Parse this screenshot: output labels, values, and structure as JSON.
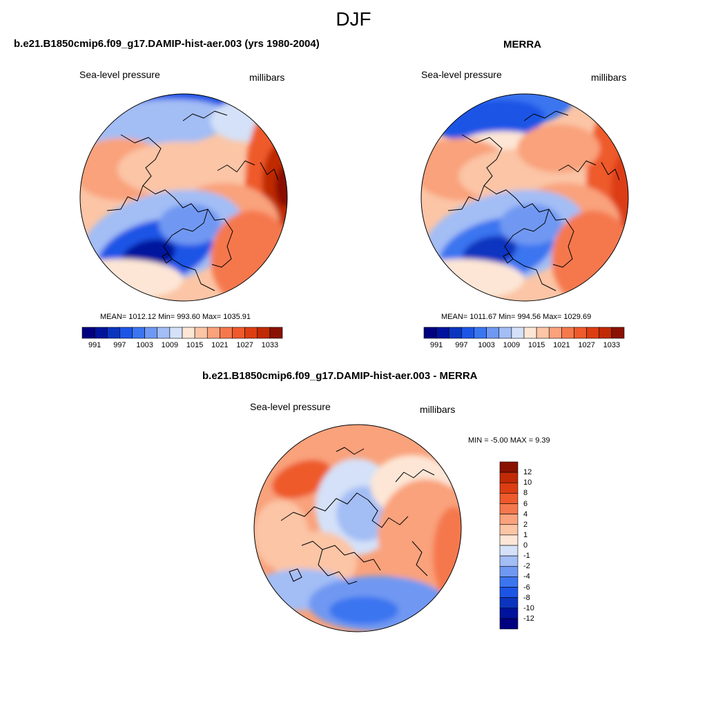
{
  "page": {
    "title": "DJF"
  },
  "panels": {
    "model": {
      "title": "b.e21.B1850cmip6.f09_g17.DAMIP-hist-aer.003 (yrs 1980-2004)",
      "variable": "Sea-level pressure",
      "units": "millibars",
      "stats": "MEAN= 1012.12  Min= 993.60  Max= 1035.91"
    },
    "obs": {
      "title": "MERRA",
      "variable": "Sea-level pressure",
      "units": "millibars",
      "stats": "MEAN= 1011.67  Min= 994.56  Max= 1029.69"
    },
    "diff": {
      "title": "b.e21.B1850cmip6.f09_g17.DAMIP-hist-aer.003 - MERRA",
      "variable": "Sea-level pressure",
      "units": "millibars",
      "stats": "MIN =  -5.00 MAX =   9.39"
    }
  },
  "chart_data": [
    {
      "type": "heatmap",
      "projection": "north polar stereographic",
      "title": "b.e21.B1850cmip6.f09_g17.DAMIP-hist-aer.003 (yrs 1980-2004)",
      "variable": "Sea-level pressure",
      "units": "millibars",
      "mean": 1012.12,
      "min": 993.6,
      "max": 1035.91,
      "colorbar_levels": [
        988,
        991,
        994,
        997,
        1000,
        1003,
        1006,
        1009,
        1012,
        1015,
        1018,
        1021,
        1024,
        1027,
        1030,
        1033,
        1036
      ],
      "colorbar_tick_labels": [
        "991",
        "997",
        "1003",
        "1009",
        "1015",
        "1021",
        "1027",
        "1033"
      ],
      "colors": [
        "#000080",
        "#00139d",
        "#0b35bf",
        "#1c55e6",
        "#3b75f0",
        "#6f98f2",
        "#a3bdf5",
        "#d4e1f8",
        "#fde6d6",
        "#fbc5a6",
        "#f9a27c",
        "#f5784d",
        "#ee5a2b",
        "#dd3d12",
        "#c02a05",
        "#8a1101"
      ]
    },
    {
      "type": "heatmap",
      "projection": "north polar stereographic",
      "title": "MERRA",
      "variable": "Sea-level pressure",
      "units": "millibars",
      "mean": 1011.67,
      "min": 994.56,
      "max": 1029.69,
      "colorbar_levels": [
        988,
        991,
        994,
        997,
        1000,
        1003,
        1006,
        1009,
        1012,
        1015,
        1018,
        1021,
        1024,
        1027,
        1030,
        1033,
        1036
      ],
      "colorbar_tick_labels": [
        "991",
        "997",
        "1003",
        "1009",
        "1015",
        "1021",
        "1027",
        "1033"
      ],
      "colors": [
        "#000080",
        "#00139d",
        "#0b35bf",
        "#1c55e6",
        "#3b75f0",
        "#6f98f2",
        "#a3bdf5",
        "#d4e1f8",
        "#fde6d6",
        "#fbc5a6",
        "#f9a27c",
        "#f5784d",
        "#ee5a2b",
        "#dd3d12",
        "#c02a05",
        "#8a1101"
      ]
    },
    {
      "type": "heatmap",
      "projection": "north polar stereographic",
      "title": "b.e21.B1850cmip6.f09_g17.DAMIP-hist-aer.003 - MERRA",
      "variable": "Sea-level pressure",
      "units": "millibars",
      "min": -5.0,
      "max": 9.39,
      "colorbar_tick_labels": [
        "12",
        "10",
        "8",
        "6",
        "4",
        "2",
        "1",
        "0",
        "-1",
        "-2",
        "-4",
        "-6",
        "-8",
        "-10",
        "-12"
      ],
      "colors": [
        "#8a1101",
        "#c02a05",
        "#dd3d12",
        "#ee5a2b",
        "#f5784d",
        "#f9a27c",
        "#fbc5a6",
        "#fde6d6",
        "#d4e1f8",
        "#a3bdf5",
        "#6f98f2",
        "#3b75f0",
        "#1c55e6",
        "#0b35bf",
        "#00139d",
        "#000080"
      ]
    }
  ]
}
